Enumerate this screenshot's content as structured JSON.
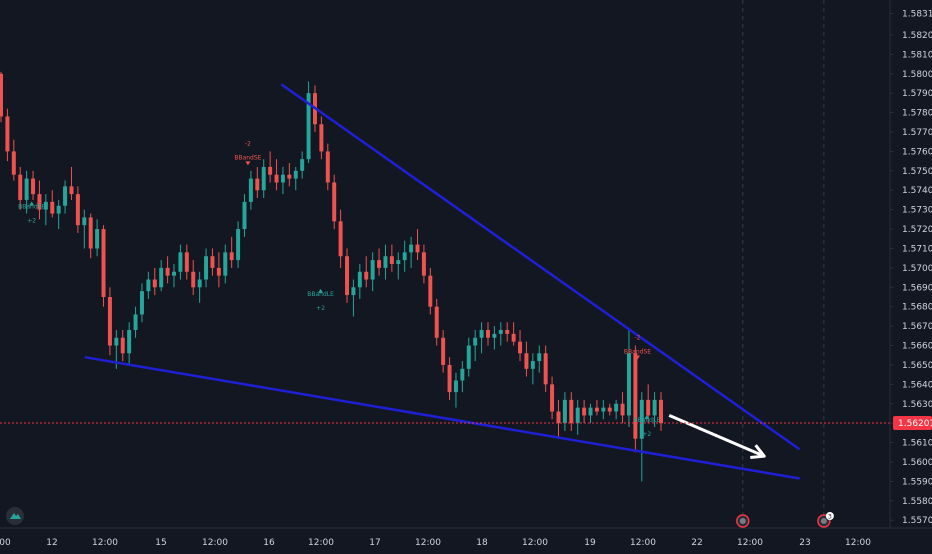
{
  "chart_data": {
    "type": "candlestick",
    "y_ticks": [
      "1.58310",
      "1.58200",
      "1.58100",
      "1.58000",
      "1.57900",
      "1.57800",
      "1.57700",
      "1.57600",
      "1.57500",
      "1.57400",
      "1.57300",
      "1.57200",
      "1.57100",
      "1.57000",
      "1.56900",
      "1.56800",
      "1.56700",
      "1.56600",
      "1.56500",
      "1.56400",
      "1.56300",
      "1.56200",
      "1.56100",
      "1.56000",
      "1.55900",
      "1.55800",
      "1.55700"
    ],
    "ylim": [
      1.5566,
      1.5838
    ],
    "x_ticks": [
      "00",
      "12",
      "12:00",
      "15",
      "12:00",
      "16",
      "12:00",
      "17",
      "12:00",
      "18",
      "12:00",
      "19",
      "12:00",
      "22",
      "12:00",
      "23",
      "12:00"
    ],
    "current_price": {
      "label": "1.56201",
      "value": 1.56201,
      "color": "#f23645"
    },
    "colors": {
      "up": "#26a69a",
      "down": "#ef5350",
      "trendline": "#1f1fd6",
      "arrow": "#ffffff",
      "background": "#131722",
      "text": "#d1d4dc"
    },
    "candles": [
      [
        1.58,
        1.5801,
        1.5775,
        1.5778
      ],
      [
        1.5778,
        1.5782,
        1.5755,
        1.576
      ],
      [
        1.576,
        1.5766,
        1.5745,
        1.5748
      ],
      [
        1.5748,
        1.5752,
        1.573,
        1.5735
      ],
      [
        1.5735,
        1.575,
        1.5728,
        1.5746
      ],
      [
        1.5746,
        1.575,
        1.5735,
        1.5738
      ],
      [
        1.5738,
        1.5745,
        1.5725,
        1.573
      ],
      [
        1.573,
        1.5738,
        1.5722,
        1.5734
      ],
      [
        1.5734,
        1.574,
        1.5726,
        1.5728
      ],
      [
        1.5728,
        1.5735,
        1.572,
        1.5732
      ],
      [
        1.5732,
        1.5745,
        1.5728,
        1.5742
      ],
      [
        1.5742,
        1.5752,
        1.5735,
        1.5738
      ],
      [
        1.5738,
        1.5742,
        1.5718,
        1.5722
      ],
      [
        1.5722,
        1.573,
        1.571,
        1.5726
      ],
      [
        1.5726,
        1.5728,
        1.5705,
        1.571
      ],
      [
        1.571,
        1.5725,
        1.5706,
        1.572
      ],
      [
        1.572,
        1.5722,
        1.568,
        1.5685
      ],
      [
        1.5685,
        1.569,
        1.5655,
        1.566
      ],
      [
        1.566,
        1.5668,
        1.5648,
        1.5664
      ],
      [
        1.5664,
        1.5668,
        1.5652,
        1.5656
      ],
      [
        1.5656,
        1.5672,
        1.565,
        1.5668
      ],
      [
        1.5668,
        1.568,
        1.5664,
        1.5676
      ],
      [
        1.5676,
        1.5692,
        1.5672,
        1.5688
      ],
      [
        1.5688,
        1.5698,
        1.5684,
        1.5694
      ],
      [
        1.5694,
        1.57,
        1.5686,
        1.569
      ],
      [
        1.569,
        1.5704,
        1.5688,
        1.57
      ],
      [
        1.57,
        1.5706,
        1.5692,
        1.5696
      ],
      [
        1.5696,
        1.5702,
        1.569,
        1.5698
      ],
      [
        1.5698,
        1.5712,
        1.5694,
        1.5708
      ],
      [
        1.5708,
        1.5712,
        1.5694,
        1.5698
      ],
      [
        1.5698,
        1.5704,
        1.5686,
        1.569
      ],
      [
        1.569,
        1.5698,
        1.5682,
        1.5694
      ],
      [
        1.5694,
        1.571,
        1.569,
        1.5706
      ],
      [
        1.5706,
        1.571,
        1.5696,
        1.57
      ],
      [
        1.57,
        1.5708,
        1.569,
        1.5696
      ],
      [
        1.5696,
        1.5712,
        1.5692,
        1.5708
      ],
      [
        1.5708,
        1.5716,
        1.57,
        1.5704
      ],
      [
        1.5704,
        1.5724,
        1.57,
        1.572
      ],
      [
        1.572,
        1.5738,
        1.5716,
        1.5734
      ],
      [
        1.5734,
        1.575,
        1.573,
        1.5746
      ],
      [
        1.5746,
        1.5752,
        1.5736,
        1.574
      ],
      [
        1.574,
        1.5756,
        1.5736,
        1.5752
      ],
      [
        1.5752,
        1.576,
        1.5744,
        1.5748
      ],
      [
        1.5748,
        1.5756,
        1.574,
        1.5744
      ],
      [
        1.5744,
        1.5752,
        1.5738,
        1.5748
      ],
      [
        1.5748,
        1.5754,
        1.5742,
        1.5746
      ],
      [
        1.5746,
        1.5752,
        1.574,
        1.575
      ],
      [
        1.575,
        1.576,
        1.5746,
        1.5756
      ],
      [
        1.5756,
        1.5796,
        1.5754,
        1.579
      ],
      [
        1.579,
        1.5794,
        1.577,
        1.5774
      ],
      [
        1.5774,
        1.5778,
        1.5756,
        1.576
      ],
      [
        1.576,
        1.5764,
        1.574,
        1.5744
      ],
      [
        1.5744,
        1.5748,
        1.572,
        1.5724
      ],
      [
        1.5724,
        1.573,
        1.57,
        1.5706
      ],
      [
        1.5706,
        1.571,
        1.5682,
        1.5686
      ],
      [
        1.5686,
        1.5694,
        1.5675,
        1.569
      ],
      [
        1.569,
        1.5702,
        1.5684,
        1.5698
      ],
      [
        1.5698,
        1.5706,
        1.569,
        1.5694
      ],
      [
        1.5694,
        1.5708,
        1.5688,
        1.5704
      ],
      [
        1.5704,
        1.571,
        1.5696,
        1.57
      ],
      [
        1.57,
        1.5712,
        1.5694,
        1.5706
      ],
      [
        1.5706,
        1.5712,
        1.5698,
        1.5702
      ],
      [
        1.5702,
        1.5708,
        1.5694,
        1.5704
      ],
      [
        1.5704,
        1.5714,
        1.5698,
        1.5708
      ],
      [
        1.5708,
        1.5716,
        1.57,
        1.5712
      ],
      [
        1.5712,
        1.572,
        1.5704,
        1.5708
      ],
      [
        1.5708,
        1.5712,
        1.5692,
        1.5696
      ],
      [
        1.5696,
        1.57,
        1.5676,
        1.568
      ],
      [
        1.568,
        1.5684,
        1.566,
        1.5664
      ],
      [
        1.5664,
        1.5668,
        1.5646,
        1.565
      ],
      [
        1.565,
        1.5654,
        1.5632,
        1.5636
      ],
      [
        1.5636,
        1.5646,
        1.5628,
        1.5642
      ],
      [
        1.5642,
        1.5652,
        1.5636,
        1.5648
      ],
      [
        1.5648,
        1.5664,
        1.5644,
        1.566
      ],
      [
        1.566,
        1.5668,
        1.5652,
        1.5664
      ],
      [
        1.5664,
        1.5672,
        1.5656,
        1.5668
      ],
      [
        1.5668,
        1.5672,
        1.566,
        1.5664
      ],
      [
        1.5664,
        1.567,
        1.5658,
        1.5666
      ],
      [
        1.5666,
        1.5672,
        1.566,
        1.5668
      ],
      [
        1.5668,
        1.5672,
        1.5662,
        1.5666
      ],
      [
        1.5666,
        1.5672,
        1.566,
        1.5662
      ],
      [
        1.5662,
        1.5668,
        1.5652,
        1.5656
      ],
      [
        1.5656,
        1.5662,
        1.5644,
        1.5648
      ],
      [
        1.5648,
        1.5656,
        1.564,
        1.5652
      ],
      [
        1.5652,
        1.566,
        1.5646,
        1.5656
      ],
      [
        1.5656,
        1.566,
        1.5636,
        1.564
      ],
      [
        1.564,
        1.5644,
        1.5622,
        1.5626
      ],
      [
        1.5626,
        1.5632,
        1.5612,
        1.562
      ],
      [
        1.562,
        1.5636,
        1.5616,
        1.5632
      ],
      [
        1.5632,
        1.5636,
        1.5616,
        1.562
      ],
      [
        1.562,
        1.5632,
        1.5614,
        1.5628
      ],
      [
        1.5628,
        1.5632,
        1.562,
        1.5624
      ],
      [
        1.5624,
        1.563,
        1.562,
        1.5628
      ],
      [
        1.5628,
        1.5632,
        1.5624,
        1.5626
      ],
      [
        1.5626,
        1.5632,
        1.5622,
        1.5628
      ],
      [
        1.5628,
        1.563,
        1.5624,
        1.5626
      ],
      [
        1.5626,
        1.5632,
        1.5622,
        1.563
      ],
      [
        1.563,
        1.5636,
        1.562,
        1.5624
      ],
      [
        1.5624,
        1.5668,
        1.5618,
        1.5656
      ],
      [
        1.5656,
        1.566,
        1.5605,
        1.5612
      ],
      [
        1.5612,
        1.5636,
        1.559,
        1.5632
      ],
      [
        1.5632,
        1.564,
        1.562,
        1.5624
      ],
      [
        1.5624,
        1.5636,
        1.5618,
        1.5632
      ],
      [
        1.5632,
        1.5636,
        1.5616,
        1.562
      ]
    ],
    "trendlines": [
      {
        "x": [
          0.302,
          0.858
        ],
        "y": [
          1.57945,
          1.56065
        ]
      },
      {
        "x": [
          0.091,
          0.858
        ],
        "y": [
          1.5654,
          1.55915
        ]
      }
    ],
    "projection_arrow": {
      "x": [
        0.718,
        0.82
      ],
      "y": [
        1.5624,
        1.5603
      ]
    },
    "signals": [
      {
        "type": "sell",
        "top": "-2",
        "bottom": "BBandSE",
        "x": 0.266,
        "y": 1.57595
      },
      {
        "type": "buy",
        "top": "BBandSE",
        "bottom": "+2",
        "x": 0.034,
        "y": 1.5727
      },
      {
        "type": "buy",
        "top": "BBandLE",
        "bottom": "+2",
        "x": 0.344,
        "y": 1.5682
      },
      {
        "type": "sell",
        "top": "-2",
        "bottom": "BBandSE",
        "x": 0.684,
        "y": 1.56595
      },
      {
        "type": "buy",
        "top": "BBandLE",
        "bottom": "+2",
        "x": 0.694,
        "y": 1.5617
      }
    ],
    "event_markers": [
      {
        "x": 0.797,
        "badge": ""
      },
      {
        "x": 0.884,
        "badge": "3"
      }
    ],
    "session_lines": [
      0.797,
      0.884
    ]
  }
}
